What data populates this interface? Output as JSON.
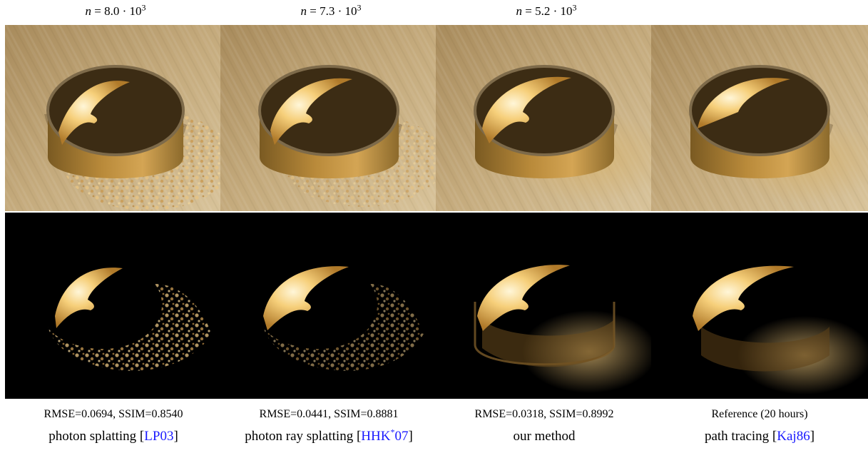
{
  "headers": [
    {
      "n_label": "n",
      "eq": " = ",
      "value": "8.0",
      "times": " · 10",
      "exp": "3"
    },
    {
      "n_label": "n",
      "eq": " = ",
      "value": "7.3",
      "times": " · 10",
      "exp": "3"
    },
    {
      "n_label": "n",
      "eq": " = ",
      "value": "5.2",
      "times": " · 10",
      "exp": "3"
    }
  ],
  "columns": [
    {
      "metrics": "RMSE=0.0694, SSIM=0.8540",
      "method": "photon splatting [",
      "cite": "LP03",
      "cite_sup": "",
      "cite_tail": "",
      "close": "]"
    },
    {
      "metrics": "RMSE=0.0441, SSIM=0.8881",
      "method": "photon ray splatting [",
      "cite": "HHK",
      "cite_sup": "*",
      "cite_tail": "07",
      "close": "]"
    },
    {
      "metrics": "RMSE=0.0318, SSIM=0.8992",
      "method": "our method",
      "cite": "",
      "cite_sup": "",
      "cite_tail": "",
      "close": ""
    },
    {
      "metrics": "Reference (20 hours)",
      "method": "path tracing [",
      "cite": "Kaj86",
      "cite_sup": "",
      "cite_tail": "",
      "close": "]"
    }
  ],
  "colors": {
    "citation": "#1a1aff",
    "wood": "#b99d6e",
    "caustic": "#f6cf7a",
    "dark_bg": "#000000"
  }
}
